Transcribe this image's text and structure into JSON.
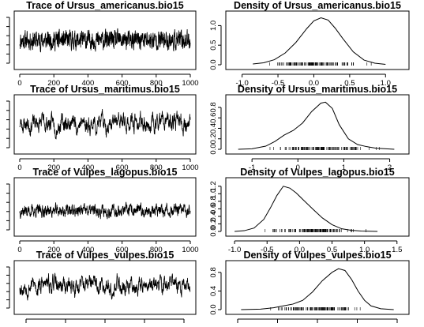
{
  "chart_data": [
    {
      "type": "line",
      "title": "Trace of Ursus_americanus.bio15",
      "xlabel": "",
      "ylabel": "",
      "x_ticks": [
        "0",
        "200",
        "400",
        "600",
        "800",
        "1000"
      ],
      "y_ticks": [],
      "xlim": [
        0,
        1000
      ],
      "ylim": [
        0,
        1
      ],
      "trace": {
        "n": 1000,
        "center": 0.5,
        "spread": 0.3,
        "ar": 0.4,
        "seed": 11,
        "range": [
          0.05,
          0.97
        ]
      }
    },
    {
      "type": "line",
      "title": "Density of Ursus_americanus.bio15",
      "xlabel": "",
      "ylabel": "",
      "x_ticks": [
        "-1.0",
        "-0.5",
        "0.0",
        "0.5",
        "1.0"
      ],
      "y_ticks": [
        "0.0",
        "0.5",
        "1.0"
      ],
      "xlim": [
        -1.15,
        1.25
      ],
      "ylim": [
        0,
        1.25
      ],
      "curve": {
        "x": [
          -0.85,
          -0.7,
          -0.55,
          -0.4,
          -0.25,
          -0.1,
          0.0,
          0.1,
          0.2,
          0.3,
          0.4,
          0.55,
          0.7,
          0.85,
          1.0
        ],
        "y": [
          0.02,
          0.05,
          0.13,
          0.3,
          0.57,
          0.92,
          1.12,
          1.2,
          1.14,
          0.93,
          0.68,
          0.33,
          0.12,
          0.04,
          0.01
        ]
      },
      "rug": {
        "from": -0.8,
        "to": 0.95,
        "count": 120
      }
    },
    {
      "type": "line",
      "title": "Trace of Ursus_maritimus.bio15",
      "xlabel": "",
      "ylabel": "",
      "x_ticks": [
        "0",
        "200",
        "400",
        "600",
        "800",
        "1000"
      ],
      "y_ticks": [],
      "xlim": [
        0,
        1000
      ],
      "ylim": [
        0,
        1
      ],
      "trace": {
        "n": 1000,
        "center": 0.52,
        "spread": 0.2,
        "ar": 0.8,
        "seed": 23,
        "range": [
          0.08,
          0.96
        ]
      }
    },
    {
      "type": "line",
      "title": "Density of Ursus_maritimus.bio15",
      "xlabel": "",
      "ylabel": "",
      "x_ticks": [
        "-1",
        "0",
        "1",
        "2"
      ],
      "y_ticks": [
        "0.0",
        "0.2",
        "0.4",
        "0.6",
        "0.8"
      ],
      "xlim": [
        -1.45,
        2.3
      ],
      "ylim": [
        0,
        0.95
      ],
      "curve": {
        "x": [
          -1.3,
          -1.0,
          -0.7,
          -0.5,
          -0.3,
          -0.1,
          0.1,
          0.3,
          0.5,
          0.6,
          0.75,
          0.9,
          1.1,
          1.3,
          1.5,
          1.7,
          2.1
        ],
        "y": [
          0.0,
          0.01,
          0.06,
          0.15,
          0.27,
          0.36,
          0.5,
          0.72,
          0.88,
          0.9,
          0.78,
          0.47,
          0.2,
          0.09,
          0.05,
          0.02,
          0.0
        ]
      },
      "rug": {
        "from": -0.9,
        "to": 1.9,
        "count": 130
      }
    },
    {
      "type": "line",
      "title": "Trace of Vulpes_lagopus.bio15",
      "xlabel": "",
      "ylabel": "",
      "x_ticks": [
        "0",
        "200",
        "400",
        "600",
        "800",
        "1000"
      ],
      "y_ticks": [],
      "xlim": [
        0,
        1000
      ],
      "ylim": [
        0,
        1
      ],
      "trace": {
        "n": 1000,
        "center": 0.42,
        "spread": 0.17,
        "ar": 0.6,
        "seed": 37,
        "range": [
          0.05,
          0.92
        ]
      }
    },
    {
      "type": "line",
      "title": "Density of Vulpes_lagopus.bio15",
      "xlabel": "",
      "ylabel": "",
      "x_ticks": [
        "-1.0",
        "-0.5",
        "0.0",
        "0.5",
        "1.0",
        "1.5"
      ],
      "y_ticks": [
        "0.0",
        "0.2",
        "0.4",
        "0.6",
        "0.8",
        "1.0",
        "1.2"
      ],
      "xlim": [
        -1.05,
        1.6
      ],
      "ylim": [
        0,
        1.3
      ],
      "curve": {
        "x": [
          -1.0,
          -0.85,
          -0.7,
          -0.55,
          -0.45,
          -0.35,
          -0.25,
          -0.15,
          -0.05,
          0.05,
          0.2,
          0.35,
          0.5,
          0.65,
          0.8,
          0.95,
          1.2
        ],
        "y": [
          0.0,
          0.02,
          0.09,
          0.32,
          0.62,
          0.95,
          1.2,
          1.15,
          1.02,
          0.85,
          0.6,
          0.36,
          0.18,
          0.07,
          0.03,
          0.01,
          0.0
        ]
      },
      "rug": {
        "from": -0.7,
        "to": 1.15,
        "count": 120
      }
    },
    {
      "type": "line",
      "title": "Trace of Vulpes_vulpes.bio15",
      "xlabel": "",
      "ylabel": "",
      "x_ticks": [],
      "y_ticks": [],
      "xlim": [
        0,
        1000
      ],
      "ylim": [
        0,
        1
      ],
      "trace": {
        "n": 1000,
        "center": 0.55,
        "spread": 0.22,
        "ar": 0.8,
        "seed": 53,
        "range": [
          0.05,
          0.95
        ]
      }
    },
    {
      "type": "line",
      "title": "Density of Vulpes_vulpes.bio15",
      "xlabel": "",
      "ylabel": "",
      "x_ticks": [],
      "y_ticks": [
        "0.0",
        "0.4",
        "0.8"
      ],
      "xlim": [
        -1.05,
        1.6
      ],
      "ylim": [
        0,
        0.95
      ],
      "curve": {
        "x": [
          -0.9,
          -0.6,
          -0.4,
          -0.25,
          -0.1,
          0.05,
          0.2,
          0.35,
          0.5,
          0.6,
          0.7,
          0.8,
          0.9,
          1.0,
          1.1,
          1.25,
          1.45
        ],
        "y": [
          0.0,
          0.01,
          0.04,
          0.08,
          0.12,
          0.2,
          0.38,
          0.62,
          0.8,
          0.88,
          0.84,
          0.65,
          0.4,
          0.2,
          0.08,
          0.02,
          0.0
        ]
      },
      "rug": {
        "from": -0.6,
        "to": 1.2,
        "count": 120
      }
    }
  ]
}
